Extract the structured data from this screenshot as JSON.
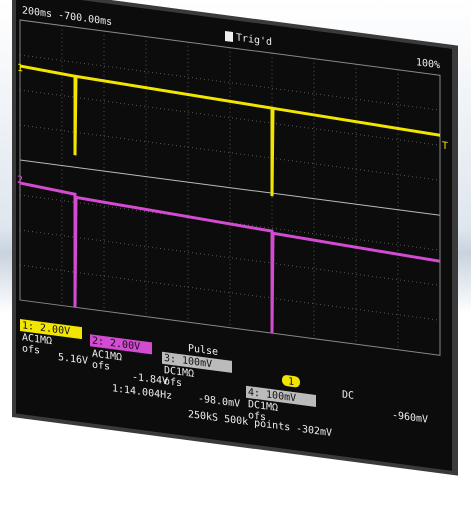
{
  "header": {
    "timebase": "200ms -700.00ms",
    "trigger_state": "Trig'd",
    "zoom": "100%"
  },
  "markers": {
    "ch1": "1",
    "ch2": "2",
    "trigger_level": "T"
  },
  "channels": [
    {
      "label": "1: 2.00V",
      "coupling": "AC1MΩ",
      "offset_label": "ofs",
      "offset": "5.16V"
    },
    {
      "label": "2: 2.00V",
      "coupling": "AC1MΩ",
      "offset_label": "ofs",
      "offset": "-1.84V"
    },
    {
      "label": "3: 100mV",
      "coupling": "DC1MΩ",
      "offset_label": "ofs",
      "offset": "-98.0mV"
    },
    {
      "label": "4: 100mV",
      "coupling": "DC1MΩ",
      "offset_label": "ofs",
      "offset": "-302mV"
    }
  ],
  "footer": {
    "trigger_type": "Pulse",
    "trigger_source": "1",
    "trigger_coupling": "DC",
    "trigger_level": "-960mV",
    "frequency": "1:14.004Hz",
    "sampling": "250kS 500k points"
  }
}
